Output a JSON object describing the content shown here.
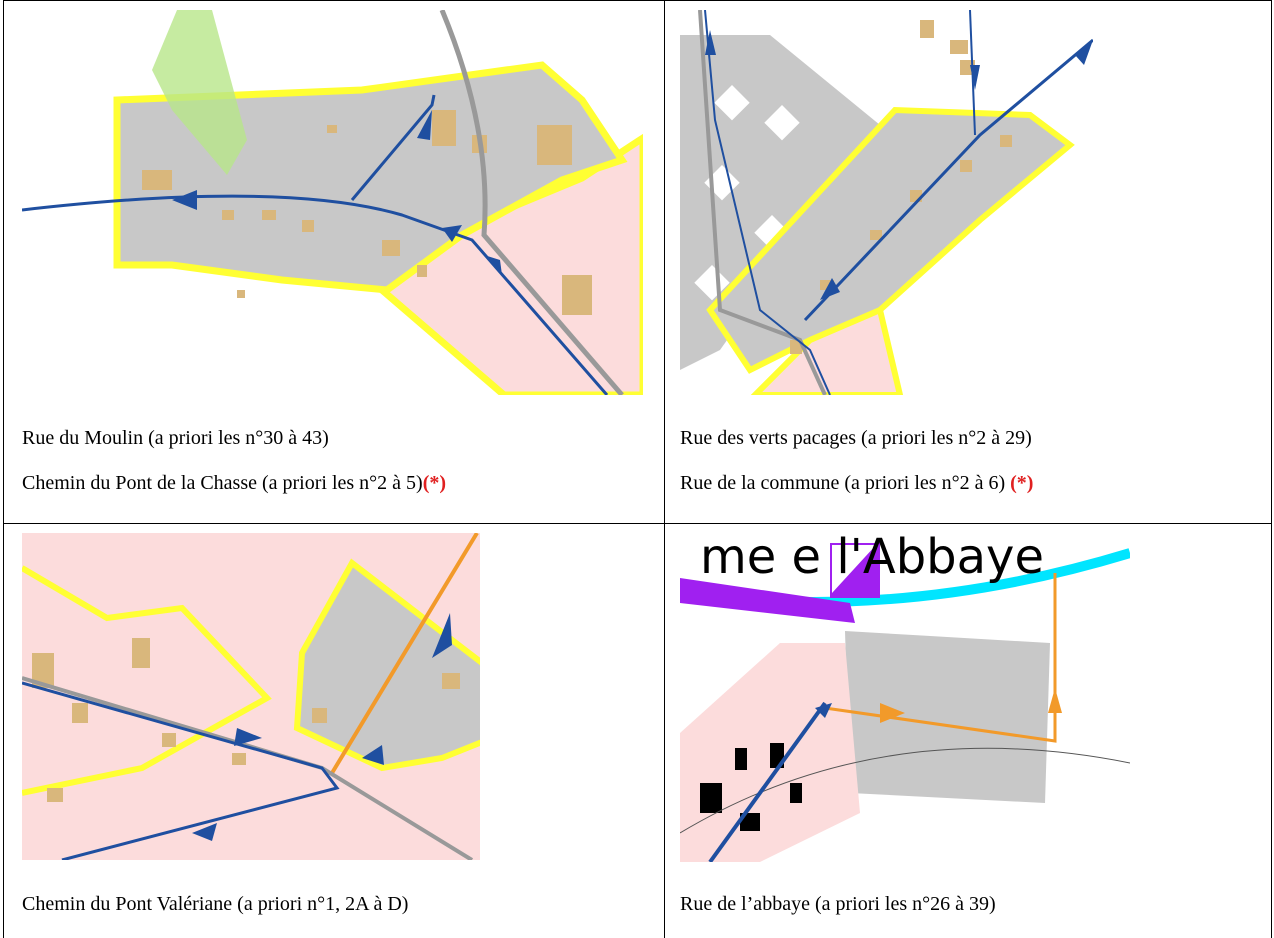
{
  "table": {
    "rows": [
      [
        {
          "lines": [
            {
              "text": "Rue du Moulin (a priori les n°30 à 43)"
            },
            {
              "text": "Chemin du Pont de la Chasse (a priori les n°2 à 5)",
              "mark": "(*)"
            }
          ]
        },
        {
          "lines": [
            {
              "text": "Rue des verts pacages (a priori les n°2 à 29)"
            },
            {
              "text": "Rue de la commune (a priori les n°2 à 6) ",
              "mark": "(*)"
            }
          ]
        }
      ],
      [
        {
          "lines": [
            {
              "text": "Chemin du Pont Valériane (a priori n°1, 2A à D)"
            }
          ]
        },
        {
          "map_text": "me  e l'Abbaye",
          "lines": [
            {
              "text": "Rue de l’abbaye (a priori les n°26 à 39)"
            }
          ]
        }
      ]
    ]
  }
}
